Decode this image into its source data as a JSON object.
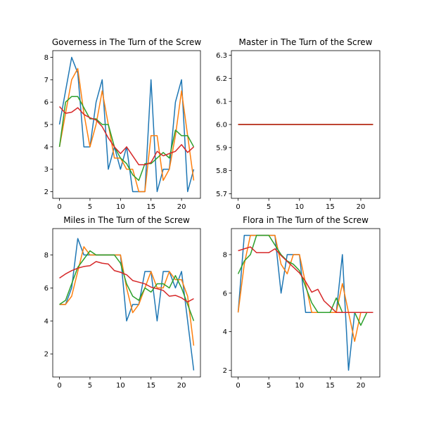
{
  "chart_data": [
    {
      "type": "line",
      "title": "Governess in The Turn of the Screw",
      "xlim": [
        -1.1,
        23.1
      ],
      "ylim": [
        1.7,
        8.3
      ],
      "xticks": [
        0,
        5,
        10,
        15,
        20
      ],
      "yticks": [
        2,
        3,
        4,
        5,
        6,
        7,
        8
      ],
      "x": [
        0,
        1,
        2,
        3,
        4,
        5,
        6,
        7,
        8,
        9,
        10,
        11,
        12,
        13,
        14,
        15,
        16,
        17,
        18,
        19,
        20,
        21,
        22
      ],
      "series": [
        {
          "color": "#1f77b4",
          "values": [
            5,
            6.5,
            8,
            7.3,
            4,
            4,
            6,
            7,
            3,
            4,
            3,
            4,
            2,
            2,
            2,
            7,
            2,
            3,
            3,
            6,
            7,
            2,
            3
          ]
        },
        {
          "color": "#ff7f0e",
          "values": [
            4,
            5.5,
            7,
            7.5,
            5.5,
            4,
            5,
            6.5,
            5,
            3.5,
            3.5,
            3,
            3,
            2,
            2,
            4.5,
            4.5,
            2.5,
            3,
            4.5,
            6.5,
            4.5,
            2.5
          ]
        },
        {
          "color": "#2ca02c",
          "values": [
            4,
            6,
            6.25,
            6.25,
            5.75,
            5.25,
            5.25,
            5,
            5,
            4,
            3.5,
            3.25,
            2.75,
            2.5,
            3.25,
            3.25,
            3.5,
            3.75,
            3.5,
            4.75,
            4.5,
            4.5,
            4
          ]
        },
        {
          "color": "#d62728",
          "values": [
            5.8,
            5.5,
            5.55,
            5.75,
            5.45,
            5.3,
            5.2,
            4.9,
            4.4,
            4.0,
            3.7,
            4.0,
            3.6,
            3.2,
            3.2,
            3.3,
            3.8,
            3.6,
            3.7,
            3.8,
            4.1,
            3.75,
            4.0
          ]
        }
      ]
    },
    {
      "type": "line",
      "title": "Master in The Turn of the Screw",
      "xlim": [
        -1.1,
        23.1
      ],
      "ylim": [
        5.68,
        6.32
      ],
      "xticks": [
        0,
        5,
        10,
        15,
        20
      ],
      "yticks": [
        5.7,
        5.8,
        5.9,
        6.0,
        6.1,
        6.2,
        6.3
      ],
      "x": [
        0,
        1,
        2,
        3,
        4,
        5,
        6,
        7,
        8,
        9,
        10,
        11,
        12,
        13,
        14,
        15,
        16,
        17,
        18,
        19,
        20,
        21,
        22
      ],
      "series": [
        {
          "color": "#1f77b4",
          "values": [
            6,
            6,
            6,
            6,
            6,
            6,
            6,
            6,
            6,
            6,
            6,
            6,
            6,
            6,
            6,
            6,
            6,
            6,
            6,
            6,
            6,
            6,
            6
          ]
        },
        {
          "color": "#ff7f0e",
          "values": [
            6,
            6,
            6,
            6,
            6,
            6,
            6,
            6,
            6,
            6,
            6,
            6,
            6,
            6,
            6,
            6,
            6,
            6,
            6,
            6,
            6,
            6,
            6
          ]
        },
        {
          "color": "#2ca02c",
          "values": [
            6,
            6,
            6,
            6,
            6,
            6,
            6,
            6,
            6,
            6,
            6,
            6,
            6,
            6,
            6,
            6,
            6,
            6,
            6,
            6,
            6,
            6,
            6
          ]
        },
        {
          "color": "#d62728",
          "values": [
            6,
            6,
            6,
            6,
            6,
            6,
            6,
            6,
            6,
            6,
            6,
            6,
            6,
            6,
            6,
            6,
            6,
            6,
            6,
            6,
            6,
            6,
            6
          ]
        }
      ]
    },
    {
      "type": "line",
      "title": "Miles in The Turn of the Screw",
      "xlim": [
        -1.1,
        23.1
      ],
      "ylim": [
        0.6,
        9.6
      ],
      "xticks": [
        0,
        5,
        10,
        15,
        20
      ],
      "yticks": [
        2,
        4,
        6,
        8
      ],
      "x": [
        0,
        1,
        2,
        3,
        4,
        5,
        6,
        7,
        8,
        9,
        10,
        11,
        12,
        13,
        14,
        15,
        16,
        17,
        18,
        19,
        20,
        21,
        22
      ],
      "series": [
        {
          "color": "#1f77b4",
          "values": [
            5,
            5,
            6,
            9,
            8,
            8,
            8,
            8,
            8,
            8,
            8,
            4,
            5,
            5,
            7,
            7,
            4,
            7,
            7,
            6,
            7,
            4,
            1
          ]
        },
        {
          "color": "#ff7f0e",
          "values": [
            5,
            5,
            5.5,
            7,
            8.5,
            8,
            8,
            8,
            8,
            8,
            8,
            6,
            4.5,
            5,
            6,
            7,
            6,
            6,
            7,
            6.5,
            6.5,
            5.5,
            2.5
          ]
        },
        {
          "color": "#2ca02c",
          "values": [
            5,
            5.25,
            6.25,
            7.25,
            7.75,
            8.25,
            8,
            8,
            8,
            8,
            7.5,
            6.25,
            5.5,
            5.25,
            6,
            5.75,
            6.25,
            6.25,
            6,
            6.75,
            6,
            5,
            4
          ]
        },
        {
          "color": "#d62728",
          "values": [
            6.6,
            6.85,
            7.05,
            7.2,
            7.3,
            7.35,
            7.6,
            7.5,
            7.45,
            7.05,
            6.95,
            6.8,
            6.45,
            6.35,
            6.25,
            6.05,
            5.95,
            5.85,
            5.5,
            5.55,
            5.4,
            5.15,
            5.35
          ]
        }
      ]
    },
    {
      "type": "line",
      "title": "Flora in The Turn of the Screw",
      "xlim": [
        -1.1,
        23.1
      ],
      "ylim": [
        1.65,
        9.35
      ],
      "xticks": [
        0,
        5,
        10,
        15,
        20
      ],
      "yticks": [
        2,
        4,
        6,
        8
      ],
      "x": [
        0,
        1,
        2,
        3,
        4,
        5,
        6,
        7,
        8,
        9,
        10,
        11,
        12,
        13,
        14,
        15,
        16,
        17,
        18,
        19,
        20,
        21,
        22
      ],
      "series": [
        {
          "color": "#1f77b4",
          "values": [
            5,
            9,
            9,
            9,
            9,
            9,
            9,
            6,
            8,
            8,
            8,
            5,
            5,
            5,
            5,
            5,
            5,
            8,
            2,
            5,
            5,
            5,
            5
          ]
        },
        {
          "color": "#ff7f0e",
          "values": [
            5,
            7.5,
            9,
            9,
            9,
            9,
            9,
            7.5,
            7,
            8,
            8,
            6.5,
            5,
            5,
            5,
            5,
            5,
            6.5,
            5,
            3.5,
            5,
            5,
            5
          ]
        },
        {
          "color": "#2ca02c",
          "values": [
            7,
            7.67,
            8,
            9,
            9,
            9,
            8.5,
            8,
            7.67,
            7.5,
            7.17,
            6.33,
            5.5,
            5,
            5,
            5,
            5.75,
            5,
            5,
            5,
            4.33,
            5,
            5
          ]
        },
        {
          "color": "#d62728",
          "values": [
            8.2,
            8.3,
            8.4,
            8.1,
            8.1,
            8.1,
            8.3,
            7.95,
            7.65,
            7.35,
            7.05,
            6.6,
            6.05,
            6.2,
            5.6,
            5.3,
            5.0,
            5.0,
            5.0,
            5.0,
            5.0,
            5.0,
            5.0
          ]
        }
      ]
    }
  ]
}
